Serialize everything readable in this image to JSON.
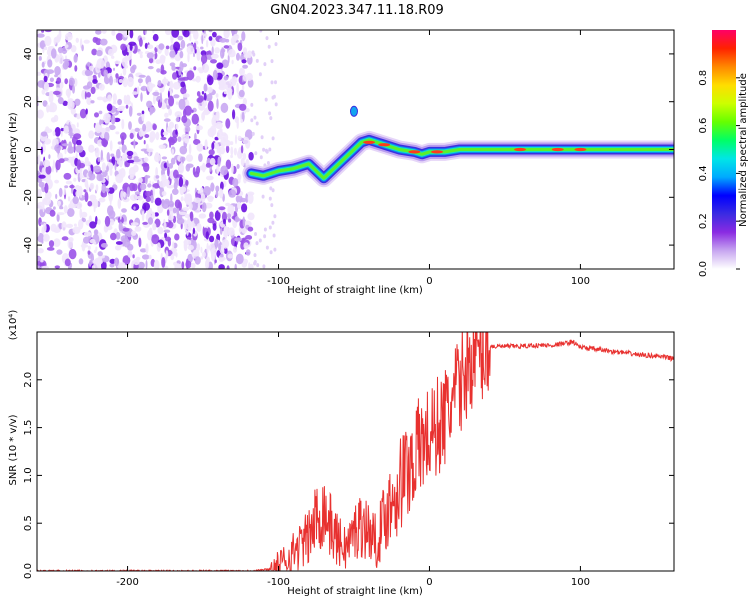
{
  "chart_data": [
    {
      "type": "heatmap",
      "title": "GN04.2023.347.11.18.R09",
      "xlabel": "Height of straight line (km)",
      "ylabel": "Frequency (Hz)",
      "xlim": [
        -260,
        162
      ],
      "ylim": [
        -50,
        50
      ],
      "xticks": [
        -200,
        -100,
        0,
        100
      ],
      "yticks": [
        40,
        20,
        0,
        -20,
        -40
      ],
      "colorbar": {
        "label": "Normalized spectral amplitude",
        "range": [
          0,
          1
        ],
        "ticks": [
          "0.0",
          "0.2",
          "0.4",
          "0.6",
          "0.8"
        ],
        "colors": [
          "#ffffff",
          "#c7a6f0",
          "#8a2be2",
          "#3a2be2",
          "#0000ff",
          "#00aaff",
          "#00e6e6",
          "#00ff66",
          "#66ff00",
          "#ccff00",
          "#ffdd00",
          "#ff8800",
          "#ff2200",
          "#ff0066"
        ]
      },
      "noise_region_x": [
        -260,
        -118
      ],
      "ridge": {
        "x": [
          -118,
          -110,
          -100,
          -90,
          -80,
          -70,
          -60,
          -50,
          -45,
          -40,
          -30,
          -20,
          -10,
          -5,
          0,
          10,
          20,
          40,
          60,
          80,
          100,
          120,
          140,
          162
        ],
        "y": [
          -10,
          -11,
          -9,
          -8,
          -6,
          -12,
          -6,
          0,
          3,
          4,
          2,
          0,
          -1,
          -2,
          -1,
          -1,
          0,
          0,
          0,
          0,
          0,
          0,
          0,
          0
        ]
      }
    },
    {
      "type": "line",
      "xlabel": "Height of straight line (km)",
      "ylabel": "SNR (10 * v/v)",
      "y_multiplier": "(x10⁴)",
      "xlim": [
        -260,
        162
      ],
      "ylim": [
        0,
        2.5
      ],
      "xticks": [
        -200,
        -100,
        0,
        100
      ],
      "yticks": [
        "0.0",
        "0.5",
        "1.0",
        "1.5",
        "2.0"
      ],
      "line_color": "#e8312f",
      "x": [
        -260,
        -240,
        -220,
        -200,
        -180,
        -160,
        -140,
        -120,
        -105,
        -100,
        -95,
        -90,
        -85,
        -80,
        -75,
        -70,
        -65,
        -60,
        -55,
        -50,
        -45,
        -40,
        -35,
        -30,
        -25,
        -20,
        -15,
        -10,
        -5,
        0,
        5,
        10,
        15,
        20,
        25,
        30,
        35,
        40,
        50,
        60,
        70,
        80,
        90,
        95,
        100,
        110,
        120,
        130,
        140,
        150,
        162
      ],
      "y": [
        0.0,
        0.0,
        0.0,
        0.0,
        0.0,
        0.0,
        0.0,
        0.0,
        0.02,
        0.05,
        0.12,
        0.2,
        0.28,
        0.35,
        0.55,
        0.65,
        0.45,
        0.3,
        0.25,
        0.4,
        0.5,
        0.42,
        0.3,
        0.55,
        0.75,
        0.9,
        1.05,
        1.2,
        1.35,
        1.4,
        1.5,
        1.6,
        1.75,
        1.95,
        2.15,
        2.25,
        2.3,
        2.35,
        2.35,
        2.35,
        2.36,
        2.36,
        2.38,
        2.4,
        2.34,
        2.32,
        2.3,
        2.28,
        2.26,
        2.25,
        2.22
      ]
    }
  ]
}
